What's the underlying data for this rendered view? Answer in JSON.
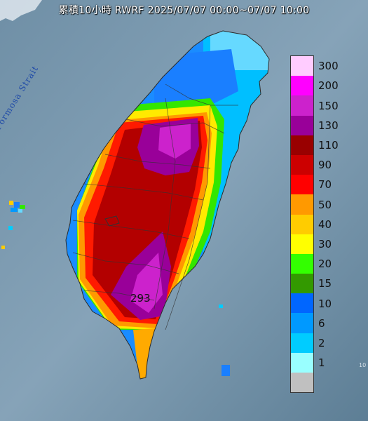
{
  "title": "累積10小時 RWRF 2025/07/07 00:00~07/07 10:00",
  "strait_label": "Formosa Strait",
  "max_value_label": "293",
  "corner_label": "10",
  "legend": {
    "items": [
      {
        "label": "300",
        "color": "#ffccff"
      },
      {
        "label": "200",
        "color": "#ff00ff"
      },
      {
        "label": "150",
        "color": "#cc22cc"
      },
      {
        "label": "130",
        "color": "#990099"
      },
      {
        "label": "110",
        "color": "#990000"
      },
      {
        "label": "90",
        "color": "#cc0000"
      },
      {
        "label": "70",
        "color": "#ff0000"
      },
      {
        "label": "50",
        "color": "#ff9900"
      },
      {
        "label": "40",
        "color": "#ffcc00"
      },
      {
        "label": "30",
        "color": "#ffff00"
      },
      {
        "label": "20",
        "color": "#33ff00"
      },
      {
        "label": "15",
        "color": "#339900"
      },
      {
        "label": "10",
        "color": "#0066ff"
      },
      {
        "label": "6",
        "color": "#0099ff"
      },
      {
        "label": "2",
        "color": "#00ccff"
      },
      {
        "label": "1",
        "color": "#99ffff"
      },
      {
        "label": "",
        "color": "#c0c0c0"
      }
    ]
  }
}
